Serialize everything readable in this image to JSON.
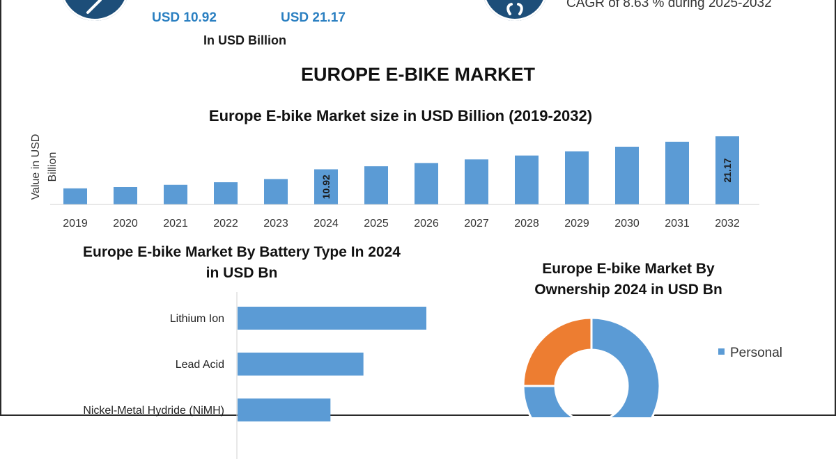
{
  "header": {
    "value_2024": "USD 10.92",
    "value_2032": "USD 21.17",
    "unit_label": "In USD Billion",
    "cagr_text": "CAGR of 8.63 % during 2025-2032"
  },
  "title": "EUROPE E-BIKE MARKET",
  "colors": {
    "bar": "#5b9bd5",
    "accent_blue": "#2a7fc1",
    "icon_circle": "#1d4e79",
    "donut_orange": "#ed7d31"
  },
  "chart_data": [
    {
      "type": "bar",
      "title": "Europe E-bike Market size in USD Billion (2019-2032)",
      "ylabel": "Value in USD Billion",
      "xlabel": "",
      "categories": [
        "2019",
        "2020",
        "2021",
        "2022",
        "2023",
        "2024",
        "2025",
        "2026",
        "2027",
        "2028",
        "2029",
        "2030",
        "2031",
        "2032"
      ],
      "values": [
        5.0,
        5.4,
        6.1,
        6.9,
        7.9,
        10.92,
        11.86,
        12.88,
        13.99,
        15.2,
        16.51,
        17.94,
        19.48,
        21.17
      ],
      "data_labels": {
        "2024": "10.92",
        "2032": "21.17"
      },
      "ylim": [
        0,
        21.17
      ],
      "grid": false
    },
    {
      "type": "bar",
      "orientation": "horizontal",
      "title": "Europe E-bike Market By  Battery Type In 2024 in USD Bn",
      "categories": [
        "Lithium Ion",
        "Lead Acid",
        "Nickel-Metal Hydride (NiMH)"
      ],
      "values": [
        6.3,
        4.2,
        3.1
      ],
      "grid": false
    },
    {
      "type": "pie",
      "style": "donut",
      "title": "Europe E-bike Market By Ownership 2024 in USD Bn",
      "categories": [
        "Personal",
        ""
      ],
      "values": [
        75,
        25
      ],
      "colors": [
        "#5b9bd5",
        "#ed7d31"
      ],
      "legend_entries": [
        "Personal"
      ],
      "legend": "right"
    }
  ]
}
